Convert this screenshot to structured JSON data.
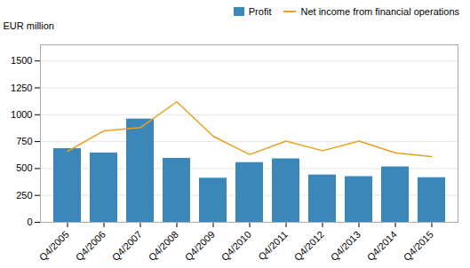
{
  "chart_data": {
    "type": "bar",
    "categories": [
      "Q4/2005",
      "Q4/2006",
      "Q4/2007",
      "Q4/2008",
      "Q4/2009",
      "Q4/2010",
      "Q4/2011",
      "Q4/2012",
      "Q4/2013",
      "Q4/2014",
      "Q4/2015"
    ],
    "series": [
      {
        "name": "Profit",
        "type": "bar",
        "color": "#3a87b8",
        "values": [
          685,
          645,
          960,
          595,
          410,
          555,
          590,
          440,
          425,
          515,
          415
        ]
      },
      {
        "name": "Net income from financial operations",
        "type": "line",
        "color": "#e8a020",
        "values": [
          660,
          850,
          880,
          1120,
          800,
          630,
          755,
          665,
          755,
          645,
          610
        ]
      }
    ],
    "ylabel": "EUR million",
    "ylim": [
      0,
      1650
    ],
    "yticks": [
      0,
      250,
      500,
      750,
      1000,
      1250,
      1500
    ],
    "grid": true,
    "legend": "upper right"
  }
}
